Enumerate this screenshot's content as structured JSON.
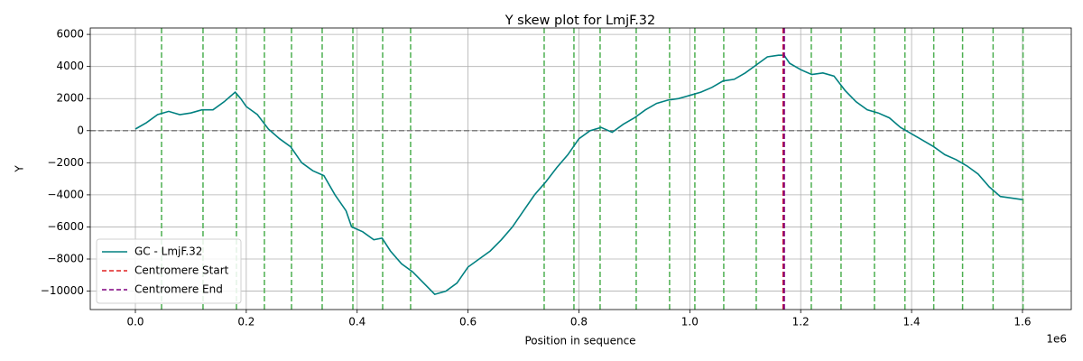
{
  "chart_data": {
    "type": "line",
    "title": "Y skew plot for LmjF.32",
    "x_label": "Position in sequence",
    "x_offset_label": "1e6",
    "y_label": "Y",
    "x": [
      0,
      20000,
      40000,
      60000,
      80000,
      100000,
      120000,
      140000,
      160000,
      180000,
      190000,
      200000,
      220000,
      240000,
      260000,
      280000,
      300000,
      320000,
      340000,
      360000,
      380000,
      390000,
      410000,
      430000,
      445000,
      460000,
      480000,
      500000,
      520000,
      540000,
      560000,
      580000,
      600000,
      620000,
      640000,
      660000,
      680000,
      700000,
      720000,
      740000,
      760000,
      780000,
      800000,
      820000,
      840000,
      860000,
      880000,
      900000,
      920000,
      940000,
      960000,
      980000,
      1000000,
      1020000,
      1040000,
      1060000,
      1080000,
      1100000,
      1120000,
      1140000,
      1160000,
      1170000,
      1180000,
      1200000,
      1220000,
      1240000,
      1260000,
      1280000,
      1300000,
      1320000,
      1340000,
      1360000,
      1380000,
      1400000,
      1420000,
      1440000,
      1460000,
      1480000,
      1500000,
      1520000,
      1540000,
      1560000,
      1580000,
      1600000
    ],
    "series": [
      {
        "name": "GC - LmjF.32",
        "color": "#008080",
        "values": [
          100,
          500,
          1000,
          1200,
          1000,
          1100,
          1300,
          1300,
          1800,
          2400,
          2000,
          1500,
          1000,
          100,
          -500,
          -1000,
          -2000,
          -2500,
          -2800,
          -4000,
          -5000,
          -6000,
          -6300,
          -6800,
          -6700,
          -7500,
          -8300,
          -8800,
          -9500,
          -10200,
          -10000,
          -9500,
          -8500,
          -8000,
          -7500,
          -6800,
          -6000,
          -5000,
          -4000,
          -3200,
          -2300,
          -1500,
          -500,
          0,
          200,
          -100,
          400,
          800,
          1300,
          1700,
          1900,
          2000,
          2200,
          2400,
          2700,
          3100,
          3200,
          3600,
          4100,
          4600,
          4700,
          4700,
          4200,
          3800,
          3500,
          3600,
          3400,
          2500,
          1800,
          1300,
          1100,
          800,
          200,
          -200,
          -600,
          -1000,
          -1500,
          -1800,
          -2200,
          -2700,
          -3500,
          -4100,
          -4200,
          -4300
        ]
      }
    ],
    "markers": [
      {
        "name": "Centromere Start",
        "color": "#e02020",
        "x": 1168600
      },
      {
        "name": "Centromere End",
        "color": "#800080",
        "x": 1170000
      }
    ],
    "reference_lines": {
      "color": "#4caf50",
      "x": [
        47200,
        122000,
        182300,
        232700,
        281600,
        336900,
        392300,
        446000,
        496400,
        737300,
        791000,
        838200,
        903300,
        963500,
        1009100,
        1061200,
        1119800,
        1219100,
        1272800,
        1333000,
        1388000,
        1440000,
        1492000,
        1547000,
        1601000
      ]
    },
    "hline": {
      "value": 0,
      "color": "#808080"
    },
    "xlim": [
      -81400,
      1688000
    ],
    "ylim": [
      -11150,
      6400
    ],
    "xticks": [
      {
        "value": 0,
        "label": "0.0"
      },
      {
        "value": 200000,
        "label": "0.2"
      },
      {
        "value": 400000,
        "label": "0.4"
      },
      {
        "value": 600000,
        "label": "0.6"
      },
      {
        "value": 800000,
        "label": "0.8"
      },
      {
        "value": 1000000,
        "label": "1.0"
      },
      {
        "value": 1200000,
        "label": "1.2"
      },
      {
        "value": 1400000,
        "label": "1.4"
      },
      {
        "value": 1600000,
        "label": "1.6"
      }
    ],
    "yticks": [
      {
        "value": -10000,
        "label": "−10000"
      },
      {
        "value": -8000,
        "label": "−8000"
      },
      {
        "value": -6000,
        "label": "−6000"
      },
      {
        "value": -4000,
        "label": "−4000"
      },
      {
        "value": -2000,
        "label": "−2000"
      },
      0,
      2000,
      4000,
      6000
    ],
    "grid": true,
    "legend": "lower left"
  }
}
